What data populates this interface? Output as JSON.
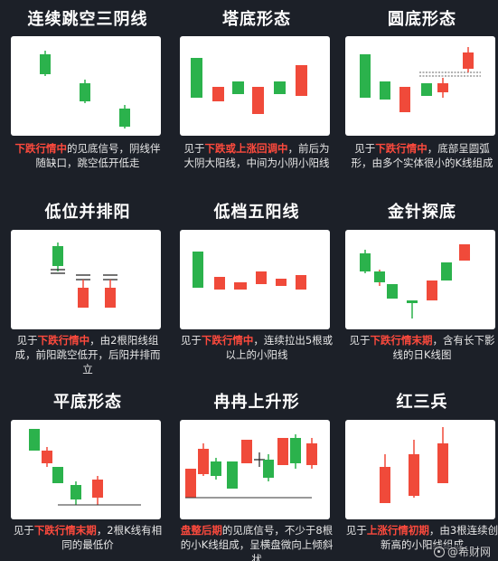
{
  "colors": {
    "background": "#1c2028",
    "panel": "#ffffff",
    "bull": "#f04a3a",
    "bear": "#2bb24c",
    "highlight": "#ff4a3d",
    "text": "#e6e6e6"
  },
  "patterns": [
    {
      "title": "连续跳空三阴线",
      "desc": [
        {
          "text": "下跌行情中",
          "hl": true
        },
        {
          "text": "的见底信号，阴线伴随缺口，跳空低开低走",
          "hl": false
        }
      ]
    },
    {
      "title": "塔底形态",
      "desc": [
        {
          "text": "见于",
          "hl": false
        },
        {
          "text": "下跌或上涨回调中",
          "hl": true
        },
        {
          "text": "，前后为大阴大阳线，中间为小阴小阳线",
          "hl": false
        }
      ]
    },
    {
      "title": "圆底形态",
      "desc": [
        {
          "text": "见于",
          "hl": false
        },
        {
          "text": "下跌行情中",
          "hl": true
        },
        {
          "text": "，底部呈圆弧形，由多个实体很小的K线组成",
          "hl": false
        }
      ]
    },
    {
      "title": "低位并排阳",
      "desc": [
        {
          "text": "见于",
          "hl": false
        },
        {
          "text": "下跌行情中",
          "hl": true
        },
        {
          "text": "，由2根阳线组成，前阳跳空低开，后阳并排而立",
          "hl": false
        }
      ]
    },
    {
      "title": "低档五阳线",
      "desc": [
        {
          "text": "见于",
          "hl": false
        },
        {
          "text": "下跌行情中",
          "hl": true
        },
        {
          "text": "，连续拉出5根或以上的小阳线",
          "hl": false
        }
      ]
    },
    {
      "title": "金针探底",
      "desc": [
        {
          "text": "见于",
          "hl": false
        },
        {
          "text": "下跌行情末期",
          "hl": true
        },
        {
          "text": "，含有长下影线的日K线图",
          "hl": false
        }
      ]
    },
    {
      "title": "平底形态",
      "desc": [
        {
          "text": "见于",
          "hl": false
        },
        {
          "text": "下跌行情末期",
          "hl": true
        },
        {
          "text": "，2根K线有相同的最低价",
          "hl": false
        }
      ]
    },
    {
      "title": "冉冉上升形",
      "desc": [
        {
          "text": "盘整后期",
          "hl": true
        },
        {
          "text": "的见底信号，不少于8根的小K线组成，呈横盘微向上倾斜状",
          "hl": false
        }
      ]
    },
    {
      "title": "红三兵",
      "desc": [
        {
          "text": "见于",
          "hl": false
        },
        {
          "text": "上涨行情初期",
          "hl": true
        },
        {
          "text": "，由3根连续创新高的小阳线组成",
          "hl": false
        }
      ]
    }
  ],
  "watermark": {
    "text": "@希财网"
  }
}
